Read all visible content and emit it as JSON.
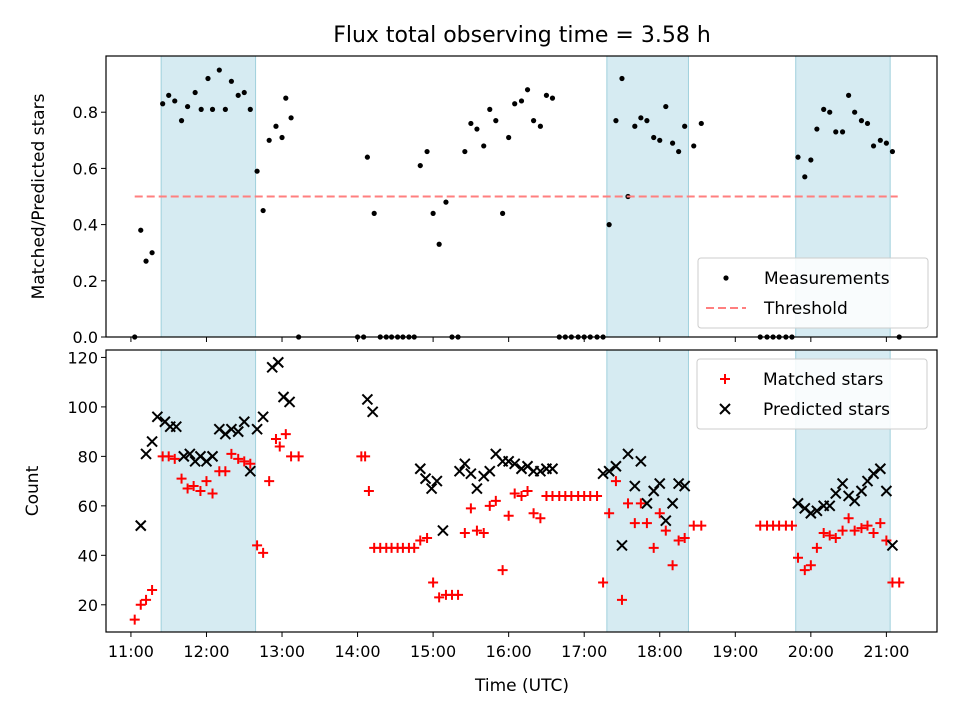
{
  "chart_data": [
    {
      "type": "scatter",
      "title": "Flux total observing time = 3.58 h",
      "xlabel": "",
      "ylabel": "Matched/Predicted stars",
      "xlim": [
        10.67,
        21.67
      ],
      "ylim": [
        0,
        1.0
      ],
      "yticks": [
        0.0,
        0.2,
        0.4,
        0.6,
        0.8
      ],
      "ytick_labels": [
        "0.0",
        "0.2",
        "0.4",
        "0.6",
        "0.8"
      ],
      "shaded_intervals": [
        [
          11.4,
          12.65
        ],
        [
          17.3,
          18.38
        ],
        [
          19.8,
          21.05
        ]
      ],
      "legend": {
        "position": "lower-right",
        "entries": [
          "Measurements",
          "Threshold"
        ]
      },
      "series": [
        {
          "name": "Measurements",
          "marker": "dot",
          "color": "#000000",
          "x": [
            11.05,
            11.13,
            11.2,
            11.28,
            11.42,
            11.5,
            11.58,
            11.67,
            11.75,
            11.85,
            11.93,
            12.02,
            12.08,
            12.17,
            12.25,
            12.33,
            12.42,
            12.5,
            12.58,
            12.67,
            12.75,
            12.83,
            12.92,
            13.0,
            13.05,
            13.12,
            13.22,
            14.0,
            14.08,
            14.13,
            14.22,
            14.3,
            14.38,
            14.45,
            14.53,
            14.6,
            14.68,
            14.75,
            14.83,
            14.92,
            15.0,
            15.08,
            15.17,
            15.25,
            15.33,
            15.42,
            15.5,
            15.58,
            15.67,
            15.75,
            15.83,
            15.92,
            16.0,
            16.08,
            16.17,
            16.25,
            16.33,
            16.42,
            16.5,
            16.58,
            16.67,
            16.75,
            16.83,
            16.92,
            17.0,
            17.08,
            17.17,
            17.25,
            17.33,
            17.42,
            17.5,
            17.58,
            17.67,
            17.75,
            17.83,
            17.92,
            18.0,
            18.08,
            18.17,
            18.25,
            18.33,
            18.45,
            18.55,
            19.33,
            19.42,
            19.5,
            19.58,
            19.67,
            19.75,
            19.83,
            19.92,
            20.0,
            20.08,
            20.17,
            20.25,
            20.33,
            20.42,
            20.5,
            20.58,
            20.67,
            20.75,
            20.83,
            20.92,
            21.0,
            21.08,
            21.17
          ],
          "y": [
            0.0,
            0.38,
            0.27,
            0.3,
            0.83,
            0.86,
            0.84,
            0.77,
            0.82,
            0.87,
            0.81,
            0.92,
            0.81,
            0.95,
            0.81,
            0.91,
            0.86,
            0.87,
            0.81,
            0.59,
            0.45,
            0.7,
            0.75,
            0.71,
            0.85,
            0.78,
            0.0,
            0.0,
            0.0,
            0.64,
            0.44,
            0.0,
            0.0,
            0.0,
            0.0,
            0.0,
            0.0,
            0.0,
            0.61,
            0.66,
            0.44,
            0.33,
            0.48,
            0.0,
            0.0,
            0.66,
            0.76,
            0.74,
            0.68,
            0.81,
            0.77,
            0.44,
            0.71,
            0.83,
            0.84,
            0.88,
            0.77,
            0.75,
            0.86,
            0.85,
            0.0,
            0.0,
            0.0,
            0.0,
            0.0,
            0.0,
            0.0,
            0.0,
            0.4,
            0.77,
            0.92,
            0.5,
            0.75,
            0.78,
            0.77,
            0.71,
            0.7,
            0.82,
            0.69,
            0.66,
            0.75,
            0.68,
            0.76,
            0.0,
            0.0,
            0.0,
            0.0,
            0.0,
            0.0,
            0.64,
            0.57,
            0.63,
            0.74,
            0.81,
            0.8,
            0.73,
            0.73,
            0.86,
            0.8,
            0.77,
            0.76,
            0.68,
            0.7,
            0.69,
            0.66,
            0.0
          ]
        },
        {
          "name": "Threshold",
          "marker": "dashed-line",
          "color": "#ff7f7f",
          "x": [
            11.05,
            21.15
          ],
          "y": [
            0.5,
            0.5
          ]
        }
      ]
    },
    {
      "type": "scatter",
      "title": "",
      "xlabel": "Time (UTC)",
      "ylabel": "Count",
      "xlim": [
        10.67,
        21.67
      ],
      "ylim": [
        9,
        123
      ],
      "yticks": [
        20,
        40,
        60,
        80,
        100,
        120
      ],
      "ytick_labels": [
        "20",
        "40",
        "60",
        "80",
        "100",
        "120"
      ],
      "xticks": [
        11,
        12,
        13,
        14,
        15,
        16,
        17,
        18,
        19,
        20,
        21
      ],
      "xtick_labels": [
        "11:00",
        "12:00",
        "13:00",
        "14:00",
        "15:00",
        "16:00",
        "17:00",
        "18:00",
        "19:00",
        "20:00",
        "21:00"
      ],
      "shaded_intervals": [
        [
          11.4,
          12.65
        ],
        [
          17.3,
          18.38
        ],
        [
          19.8,
          21.05
        ]
      ],
      "legend": {
        "position": "upper-right",
        "entries": [
          "Matched stars",
          "Predicted stars"
        ]
      },
      "series": [
        {
          "name": "Matched stars",
          "marker": "plus",
          "color": "#ff0000",
          "x": [
            11.05,
            11.13,
            11.2,
            11.28,
            11.42,
            11.5,
            11.58,
            11.67,
            11.75,
            11.83,
            11.92,
            12.0,
            12.08,
            12.17,
            12.25,
            12.33,
            12.42,
            12.5,
            12.58,
            12.67,
            12.75,
            12.83,
            12.92,
            12.97,
            13.05,
            13.12,
            13.22,
            14.05,
            14.1,
            14.15,
            14.22,
            14.3,
            14.38,
            14.45,
            14.53,
            14.6,
            14.68,
            14.75,
            14.83,
            14.92,
            15.0,
            15.08,
            15.17,
            15.25,
            15.33,
            15.42,
            15.5,
            15.58,
            15.67,
            15.75,
            15.83,
            15.92,
            16.0,
            16.08,
            16.17,
            16.25,
            16.33,
            16.42,
            16.5,
            16.58,
            16.67,
            16.75,
            16.83,
            16.92,
            17.0,
            17.08,
            17.17,
            17.25,
            17.33,
            17.42,
            17.5,
            17.58,
            17.67,
            17.75,
            17.83,
            17.92,
            18.0,
            18.08,
            18.17,
            18.25,
            18.33,
            18.45,
            18.55,
            19.33,
            19.42,
            19.5,
            19.58,
            19.67,
            19.75,
            19.83,
            19.92,
            20.0,
            20.08,
            20.17,
            20.25,
            20.33,
            20.42,
            20.5,
            20.58,
            20.67,
            20.75,
            20.83,
            20.92,
            21.0,
            21.08,
            21.17
          ],
          "y": [
            14,
            20,
            22,
            26,
            80,
            80,
            79,
            71,
            67,
            68,
            66,
            70,
            65,
            74,
            74,
            81,
            79,
            78,
            77,
            44,
            41,
            70,
            87,
            84,
            89,
            80,
            80,
            80,
            80,
            66,
            43,
            43,
            43,
            43,
            43,
            43,
            43,
            43,
            46,
            47,
            29,
            23,
            24,
            24,
            24,
            49,
            59,
            50,
            49,
            60,
            62,
            34,
            56,
            65,
            64,
            66,
            57,
            55,
            64,
            64,
            64,
            64,
            64,
            64,
            64,
            64,
            64,
            29,
            57,
            70,
            22,
            61,
            53,
            61,
            53,
            43,
            57,
            50,
            36,
            46,
            47,
            52,
            52,
            52,
            52,
            52,
            52,
            52,
            52,
            39,
            34,
            36,
            43,
            49,
            48,
            47,
            50,
            55,
            50,
            51,
            52,
            49,
            53,
            46,
            29,
            29
          ]
        },
        {
          "name": "Predicted stars",
          "marker": "x",
          "color": "#000000",
          "x": [
            11.13,
            11.2,
            11.28,
            11.35,
            11.45,
            11.52,
            11.6,
            11.7,
            11.78,
            11.85,
            11.92,
            12.0,
            12.08,
            12.17,
            12.25,
            12.33,
            12.42,
            12.5,
            12.58,
            12.67,
            12.75,
            12.87,
            12.95,
            13.02,
            13.1,
            14.13,
            14.2,
            14.83,
            14.9,
            14.98,
            15.05,
            15.13,
            15.35,
            15.42,
            15.5,
            15.58,
            15.67,
            15.75,
            15.83,
            15.92,
            16.0,
            16.08,
            16.17,
            16.25,
            16.33,
            16.42,
            16.5,
            16.58,
            17.25,
            17.33,
            17.42,
            17.5,
            17.58,
            17.67,
            17.75,
            17.83,
            17.92,
            18.0,
            18.08,
            18.17,
            18.25,
            18.33,
            19.83,
            19.92,
            20.0,
            20.08,
            20.17,
            20.25,
            20.33,
            20.42,
            20.5,
            20.58,
            20.67,
            20.75,
            20.83,
            20.92,
            21.0,
            21.08
          ],
          "y": [
            52,
            81,
            86,
            96,
            94,
            92,
            92,
            80,
            81,
            78,
            80,
            78,
            80,
            91,
            89,
            91,
            90,
            94,
            74,
            91,
            96,
            116,
            118,
            104,
            102,
            103,
            98,
            75,
            71,
            67,
            70,
            50,
            74,
            77,
            73,
            67,
            72,
            74,
            81,
            78,
            78,
            77,
            75,
            76,
            74,
            74,
            75,
            75,
            73,
            74,
            76,
            44,
            81,
            68,
            78,
            61,
            66,
            69,
            54,
            61,
            69,
            68,
            61,
            59,
            57,
            58,
            60,
            60,
            65,
            69,
            64,
            62,
            66,
            70,
            73,
            75,
            66,
            44
          ]
        }
      ]
    }
  ]
}
